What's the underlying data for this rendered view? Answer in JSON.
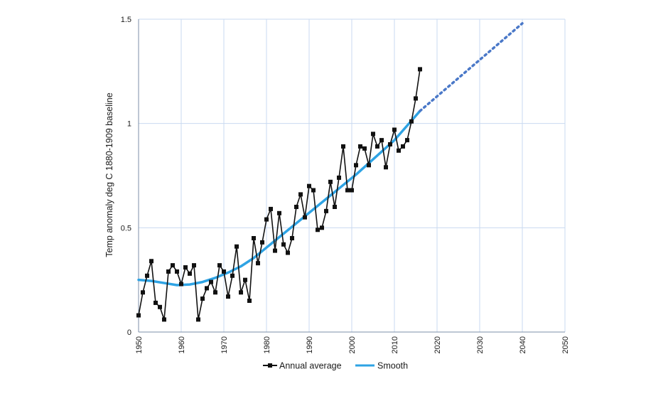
{
  "chart_data": {
    "type": "line",
    "title": "",
    "xlabel": "",
    "ylabel": "Temp anomaly deg C 1880-1909 baseline",
    "xlim": [
      1950,
      2050
    ],
    "ylim": [
      0,
      1.5
    ],
    "x_ticks": [
      1950,
      1960,
      1970,
      1980,
      1990,
      2000,
      2010,
      2020,
      2030,
      2040,
      2050
    ],
    "x_tick_labels": [
      "1950",
      "1960",
      "1970",
      "1980",
      "1990",
      "2000",
      "2010",
      "2020",
      "2030",
      "2040",
      "2050"
    ],
    "y_ticks": [
      0,
      0.5,
      1,
      1.5
    ],
    "y_tick_labels": [
      "0",
      "0.5",
      "1",
      "1.5"
    ],
    "grid": true,
    "legend_position": "bottom",
    "colors": {
      "annual": "#111111",
      "smooth": "#2ea3e4",
      "projection": "#4a78c8",
      "grid": "#c9daf0"
    },
    "series": [
      {
        "name": "Annual average",
        "marker": "square",
        "x": [
          1950,
          1951,
          1952,
          1953,
          1954,
          1955,
          1956,
          1957,
          1958,
          1959,
          1960,
          1961,
          1962,
          1963,
          1964,
          1965,
          1966,
          1967,
          1968,
          1969,
          1970,
          1971,
          1972,
          1973,
          1974,
          1975,
          1976,
          1977,
          1978,
          1979,
          1980,
          1981,
          1982,
          1983,
          1984,
          1985,
          1986,
          1987,
          1988,
          1989,
          1990,
          1991,
          1992,
          1993,
          1994,
          1995,
          1996,
          1997,
          1998,
          1999,
          2000,
          2001,
          2002,
          2003,
          2004,
          2005,
          2006,
          2007,
          2008,
          2009,
          2010,
          2011,
          2012,
          2013,
          2014,
          2015,
          2016
        ],
        "y": [
          0.08,
          0.19,
          0.27,
          0.34,
          0.14,
          0.12,
          0.06,
          0.29,
          0.32,
          0.29,
          0.23,
          0.31,
          0.28,
          0.32,
          0.06,
          0.16,
          0.21,
          0.24,
          0.19,
          0.32,
          0.29,
          0.17,
          0.27,
          0.41,
          0.19,
          0.25,
          0.15,
          0.45,
          0.33,
          0.43,
          0.54,
          0.59,
          0.39,
          0.57,
          0.42,
          0.38,
          0.45,
          0.6,
          0.66,
          0.55,
          0.7,
          0.68,
          0.49,
          0.5,
          0.58,
          0.72,
          0.6,
          0.74,
          0.89,
          0.68,
          0.68,
          0.8,
          0.89,
          0.88,
          0.8,
          0.95,
          0.89,
          0.92,
          0.79,
          0.9,
          0.97,
          0.87,
          0.89,
          0.92,
          1.01,
          1.12,
          1.26
        ]
      },
      {
        "name": "Smooth",
        "x": [
          1950,
          1953,
          1956,
          1959,
          1962,
          1965,
          1968,
          1971,
          1974,
          1977,
          1980,
          1983,
          1986,
          1989,
          1992,
          1995,
          1998,
          2001,
          2004,
          2007,
          2010,
          2013,
          2016
        ],
        "y": [
          0.25,
          0.245,
          0.235,
          0.225,
          0.228,
          0.24,
          0.26,
          0.285,
          0.315,
          0.355,
          0.405,
          0.455,
          0.505,
          0.555,
          0.605,
          0.655,
          0.705,
          0.755,
          0.81,
          0.865,
          0.92,
          0.99,
          1.06
        ]
      },
      {
        "x": [
          2016,
          2040
        ],
        "y": [
          1.06,
          1.48
        ],
        "style": "dotted"
      }
    ]
  }
}
